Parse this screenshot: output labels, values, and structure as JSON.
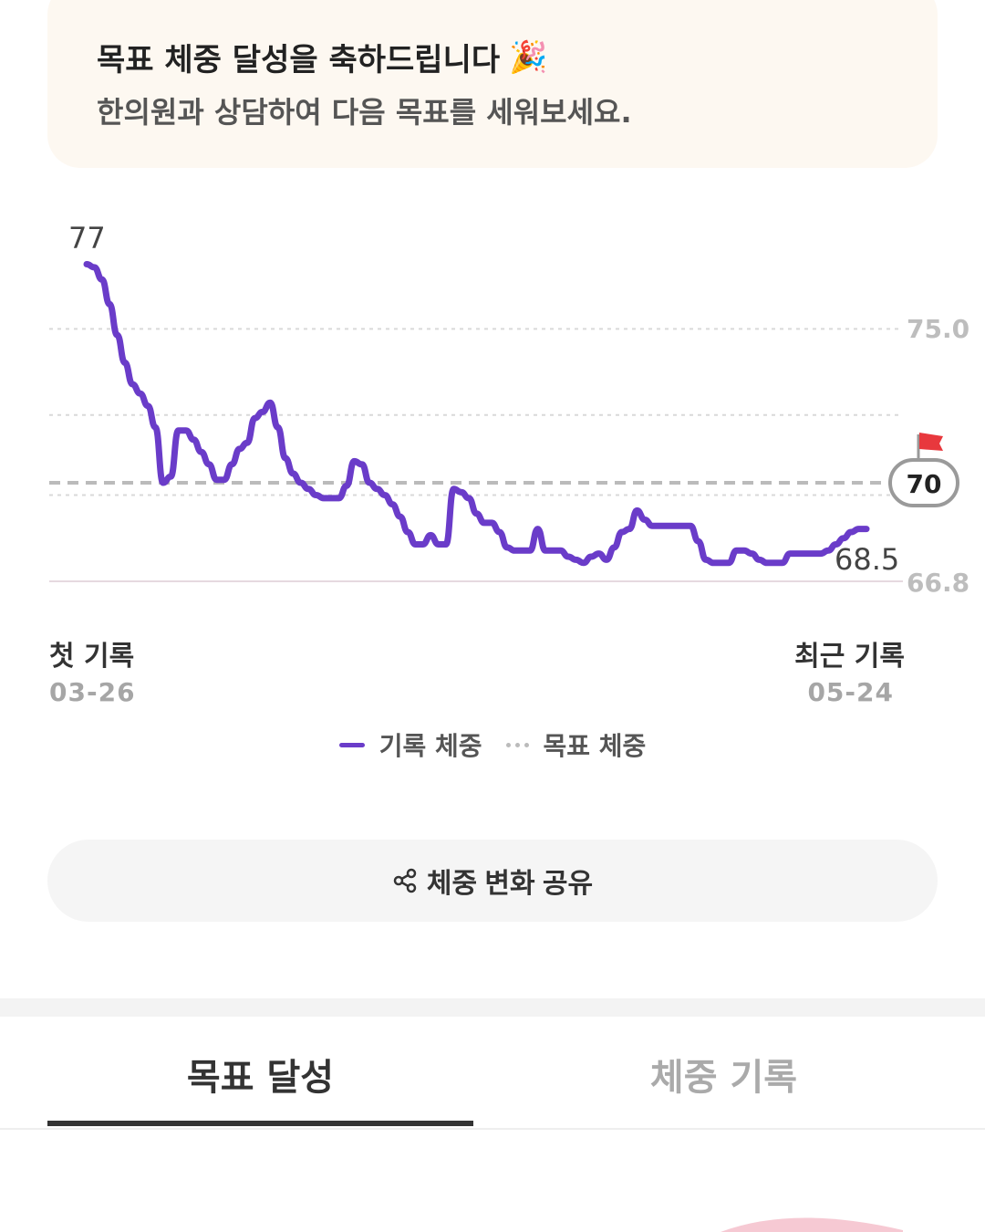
{
  "banner": {
    "title": "목표 체중 달성을 축하드립니다",
    "title_icon": "party-popper-icon",
    "subtitle": "한의원과 상담하여 다음 목표를 세워보세요."
  },
  "chart_data": {
    "type": "line",
    "title": "",
    "xlabel": "",
    "ylabel": "",
    "yticks": [
      "75.0",
      "66.8"
    ],
    "ylim": [
      66.8,
      77.8
    ],
    "grid": true,
    "goal_value": "70",
    "goal_icon": "flag-icon",
    "start_value_label": "77",
    "end_value_label": "68.5",
    "line_color": "#6a3cc9",
    "goal_line_color": "#bbbbbb",
    "series": [
      {
        "values": [
          77.1,
          77.0,
          76.6,
          75.8,
          74.8,
          73.9,
          73.2,
          72.9,
          72.5,
          71.8,
          70.0,
          70.2,
          71.7,
          71.7,
          71.4,
          71.0,
          70.6,
          70.1,
          70.1,
          70.6,
          71.1,
          71.3,
          72.1,
          72.3,
          72.6,
          71.8,
          70.8,
          70.3,
          70.0,
          69.8,
          69.6,
          69.5,
          69.5,
          69.5,
          69.9,
          70.7,
          70.6,
          70.0,
          69.8,
          69.6,
          69.3,
          68.9,
          68.4,
          68.0,
          68.0,
          68.3,
          68.0,
          68.0,
          69.8,
          69.7,
          69.5,
          69.0,
          68.7,
          68.7,
          68.4,
          67.9,
          67.8,
          67.8,
          67.8,
          68.5,
          67.8,
          67.8,
          67.8,
          67.6,
          67.5,
          67.4,
          67.6,
          67.7,
          67.5,
          67.9,
          68.4,
          68.5,
          69.1,
          68.8,
          68.6,
          68.6,
          68.6,
          68.6,
          68.6,
          68.6,
          68.1,
          67.5,
          67.4,
          67.4,
          67.4,
          67.8,
          67.8,
          67.7,
          67.5,
          67.4,
          67.4,
          67.4,
          67.7,
          67.7,
          67.7,
          67.7,
          67.7,
          67.8,
          68.0,
          68.2,
          68.4,
          68.5,
          68.5
        ]
      }
    ]
  },
  "axis": {
    "start_label": "첫 기록",
    "start_date": "03-26",
    "end_label": "최근 기록",
    "end_date": "05-24"
  },
  "legend": {
    "recorded": "기록 체중",
    "goal": "목표 체중"
  },
  "share_button": {
    "label": "체중 변화 공유",
    "icon": "share-icon"
  },
  "tabs": [
    {
      "label": "목표 달성",
      "active": true
    },
    {
      "label": "체중 기록",
      "active": false
    }
  ]
}
